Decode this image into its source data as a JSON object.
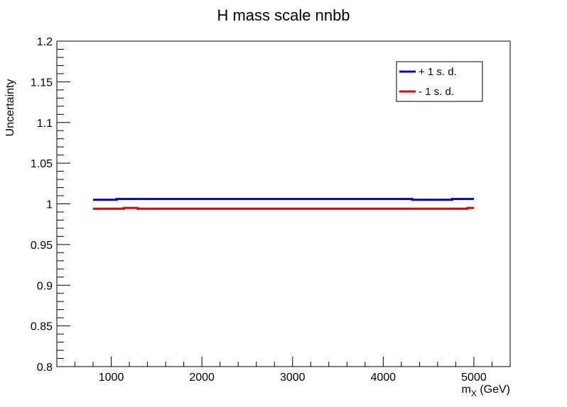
{
  "chart_data": {
    "type": "line",
    "title": "H mass scale nnbb",
    "xlabel_main": "m",
    "xlabel_sub": "X",
    "xlabel_unit": " (GeV)",
    "ylabel": "Uncertainty",
    "xlim": [
      400,
      5400
    ],
    "ylim": [
      0.8,
      1.2
    ],
    "x_major_ticks": [
      1000,
      2000,
      3000,
      4000,
      5000
    ],
    "x_tick_labels": [
      "1000",
      "2000",
      "3000",
      "4000",
      "5000"
    ],
    "y_major_ticks": [
      0.8,
      0.85,
      0.9,
      0.95,
      1.0,
      1.05,
      1.1,
      1.15,
      1.2
    ],
    "y_tick_labels": [
      "0.8",
      "0.85",
      "0.9",
      "0.95",
      "1",
      "1.05",
      "1.1",
      "1.15",
      "1.2"
    ],
    "grid": false,
    "legend_position": "top-right",
    "series": [
      {
        "name": "+ 1 s. d.",
        "color": "#0000dd",
        "x": [
          800,
          1060,
          1060,
          4320,
          4320,
          4760,
          4760,
          5000
        ],
        "y": [
          1.005,
          1.005,
          1.006,
          1.006,
          1.005,
          1.005,
          1.006,
          1.006
        ]
      },
      {
        "name": "- 1 s. d.",
        "color": "#ee0000",
        "x": [
          800,
          1140,
          1140,
          1290,
          1290,
          4930,
          4930,
          5000
        ],
        "y": [
          0.994,
          0.994,
          0.995,
          0.995,
          0.994,
          0.994,
          0.995,
          0.995
        ]
      }
    ]
  }
}
